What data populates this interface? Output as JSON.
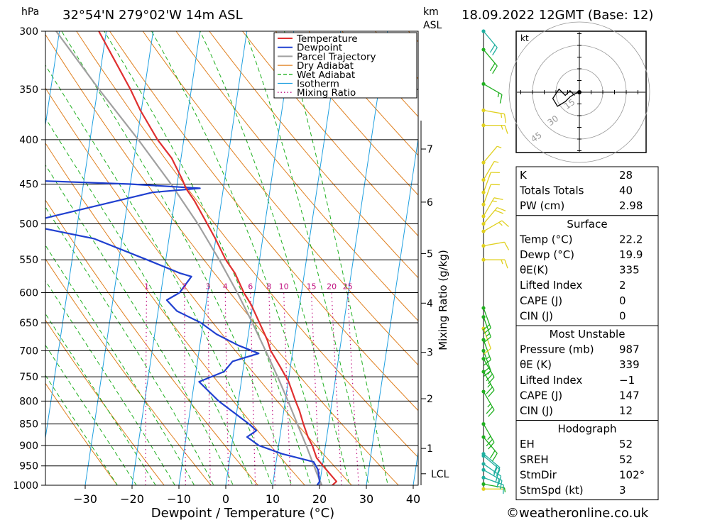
{
  "header": {
    "location": "32°54'N 279°02'W 14m ASL",
    "datetime": "18.09.2022 12GMT (Base: 12)",
    "hpa_label": "hPa",
    "km_label": "km",
    "asl_label": "ASL"
  },
  "legend": [
    "Temperature",
    "Dewpoint",
    "Parcel Trajectory",
    "Dry Adiabat",
    "Wet Adiabat",
    "Isotherm",
    "Mixing Ratio"
  ],
  "colors": {
    "temperature": "#e03030",
    "dewpoint": "#2040d0",
    "parcel": "#a0a0a0",
    "dry": "#e08020",
    "wet": "#20b020",
    "iso": "#20a0e0",
    "mix": "#c01080",
    "wind_green": "#20b020",
    "wind_yellow": "#e0d020",
    "wind_teal": "#20b0a0"
  },
  "chart_data": {
    "type": "line",
    "title": "Skew-T log-P diagram",
    "xlabel": "Dewpoint / Temperature (°C)",
    "ylabel": "hPa",
    "xlim": [
      -40,
      40
    ],
    "ylim": [
      1000,
      300
    ],
    "x_ticks": [
      "−30",
      "−20",
      "−10",
      "0",
      "10",
      "20",
      "30",
      "40"
    ],
    "pressure_levels": [
      300,
      350,
      400,
      450,
      500,
      550,
      600,
      650,
      700,
      750,
      800,
      850,
      900,
      950,
      1000
    ],
    "km_ticks": [
      {
        "km": "1",
        "p": 907
      },
      {
        "km": "2",
        "p": 795
      },
      {
        "km": "3",
        "p": 703
      },
      {
        "km": "4",
        "p": 617
      },
      {
        "km": "5",
        "p": 541
      },
      {
        "km": "6",
        "p": 472
      },
      {
        "km": "7",
        "p": 410
      }
    ],
    "lcl": {
      "label": "LCL",
      "p": 970
    },
    "mixing_ratio_axis": "Mixing Ratio (g/kg)",
    "mixing_ratio_lines": [
      {
        "label": "1",
        "w": 1
      },
      {
        "label": "2",
        "w": 2
      },
      {
        "label": "3",
        "w": 3
      },
      {
        "label": "4",
        "w": 4
      },
      {
        "label": "6",
        "w": 6
      },
      {
        "label": "8",
        "w": 8
      },
      {
        "label": "10",
        "w": 10
      },
      {
        "label": "15",
        "w": 15
      },
      {
        "label": "20",
        "w": 20
      },
      {
        "label": "25",
        "w": 25
      }
    ],
    "series": [
      {
        "name": "Temperature",
        "points": [
          [
            1007,
            22.2
          ],
          [
            990,
            23.5
          ],
          [
            960,
            21
          ],
          [
            930,
            18.5
          ],
          [
            900,
            17.2
          ],
          [
            880,
            16
          ],
          [
            850,
            14.6
          ],
          [
            820,
            13.3
          ],
          [
            800,
            12.2
          ],
          [
            760,
            10.1
          ],
          [
            730,
            7.8
          ],
          [
            700,
            5.3
          ],
          [
            680,
            4.2
          ],
          [
            650,
            2.0
          ],
          [
            620,
            -0.3
          ],
          [
            600,
            -2.3
          ],
          [
            570,
            -4.8
          ],
          [
            550,
            -7.2
          ],
          [
            520,
            -10.1
          ],
          [
            500,
            -12.3
          ],
          [
            470,
            -15.8
          ],
          [
            455,
            -18.0
          ],
          [
            445,
            -19.0
          ],
          [
            420,
            -22.0
          ],
          [
            400,
            -25.6
          ],
          [
            370,
            -30.2
          ],
          [
            350,
            -33.0
          ],
          [
            320,
            -38.0
          ],
          [
            300,
            -41.6
          ]
        ]
      },
      {
        "name": "Dewpoint",
        "points": [
          [
            1000,
            19.5
          ],
          [
            990,
            19.9
          ],
          [
            960,
            19.2
          ],
          [
            940,
            18.0
          ],
          [
            920,
            11.0
          ],
          [
            900,
            5.8
          ],
          [
            880,
            3.0
          ],
          [
            865,
            4.8
          ],
          [
            850,
            3.0
          ],
          [
            800,
            -4.2
          ],
          [
            760,
            -9.0
          ],
          [
            740,
            -4.0
          ],
          [
            720,
            -2.5
          ],
          [
            705,
            2.8
          ],
          [
            690,
            -1.8
          ],
          [
            670,
            -6.8
          ],
          [
            650,
            -10.5
          ],
          [
            630,
            -16.0
          ],
          [
            612,
            -18.5
          ],
          [
            600,
            -16.0
          ],
          [
            575,
            -14.0
          ],
          [
            570,
            -16.5
          ],
          [
            550,
            -24.0
          ],
          [
            520,
            -36.0
          ],
          [
            500,
            -52.0
          ],
          [
            460,
            -25.0
          ],
          [
            455,
            -15.0
          ],
          [
            450,
            -30.0
          ],
          [
            445,
            -55.0
          ],
          [
            400,
            -65.0
          ],
          [
            300,
            -85.0
          ]
        ]
      },
      {
        "name": "Parcel Trajectory",
        "points": [
          [
            1000,
            20.5
          ],
          [
            970,
            19.1
          ],
          [
            930,
            17.3
          ],
          [
            900,
            15.9
          ],
          [
            850,
            13.3
          ],
          [
            800,
            10.6
          ],
          [
            750,
            7.6
          ],
          [
            700,
            4.2
          ],
          [
            650,
            0.5
          ],
          [
            600,
            -3.7
          ],
          [
            550,
            -8.6
          ],
          [
            500,
            -14.3
          ],
          [
            450,
            -21.3
          ],
          [
            400,
            -29.7
          ],
          [
            350,
            -39.7
          ],
          [
            300,
            -50.7
          ]
        ]
      }
    ]
  },
  "winds": [
    {
      "p": 1010,
      "dir": 90,
      "spd": 3,
      "color": "yellow"
    },
    {
      "p": 997,
      "dir": 100,
      "spd": 5,
      "color": "green"
    },
    {
      "p": 980,
      "dir": 110,
      "spd": 10,
      "color": "teal"
    },
    {
      "p": 960,
      "dir": 120,
      "spd": 20,
      "color": "teal"
    },
    {
      "p": 945,
      "dir": 125,
      "spd": 20,
      "color": "teal"
    },
    {
      "p": 925,
      "dir": 130,
      "spd": 20,
      "color": "teal"
    },
    {
      "p": 920,
      "dir": 130,
      "spd": 20,
      "color": "teal"
    },
    {
      "p": 880,
      "dir": 140,
      "spd": 20,
      "color": "green"
    },
    {
      "p": 850,
      "dir": 150,
      "spd": 25,
      "color": "green"
    },
    {
      "p": 780,
      "dir": 150,
      "spd": 25,
      "color": "green"
    },
    {
      "p": 740,
      "dir": 150,
      "spd": 25,
      "color": "green"
    },
    {
      "p": 715,
      "dir": 150,
      "spd": 25,
      "color": "green"
    },
    {
      "p": 700,
      "dir": 160,
      "spd": 20,
      "color": "green"
    },
    {
      "p": 680,
      "dir": 160,
      "spd": 15,
      "color": "green"
    },
    {
      "p": 660,
      "dir": 160,
      "spd": 10,
      "color": "yellow"
    },
    {
      "p": 640,
      "dir": 160,
      "spd": 15,
      "color": "green"
    },
    {
      "p": 625,
      "dir": 160,
      "spd": 20,
      "color": "green"
    },
    {
      "p": 550,
      "dir": 90,
      "spd": 15,
      "color": "yellow"
    },
    {
      "p": 530,
      "dir": 80,
      "spd": 10,
      "color": "yellow"
    },
    {
      "p": 510,
      "dir": 60,
      "spd": 15,
      "color": "yellow"
    },
    {
      "p": 500,
      "dir": 40,
      "spd": 20,
      "color": "yellow"
    },
    {
      "p": 490,
      "dir": 30,
      "spd": 15,
      "color": "yellow"
    },
    {
      "p": 475,
      "dir": 20,
      "spd": 10,
      "color": "yellow"
    },
    {
      "p": 460,
      "dir": 20,
      "spd": 10,
      "color": "yellow"
    },
    {
      "p": 445,
      "dir": 30,
      "spd": 5,
      "color": "yellow"
    },
    {
      "p": 425,
      "dir": 40,
      "spd": 5,
      "color": "yellow"
    },
    {
      "p": 385,
      "dir": 90,
      "spd": 15,
      "color": "yellow"
    },
    {
      "p": 370,
      "dir": 100,
      "spd": 15,
      "color": "yellow"
    },
    {
      "p": 345,
      "dir": 120,
      "spd": 15,
      "color": "green"
    },
    {
      "p": 315,
      "dir": 140,
      "spd": 20,
      "color": "green"
    },
    {
      "p": 300,
      "dir": 140,
      "spd": 20,
      "color": "teal"
    }
  ],
  "hodograph": {
    "unit": "kt",
    "rings": [
      "15",
      "30",
      "45"
    ],
    "trace": [
      [
        0,
        0
      ],
      [
        -3,
        -1
      ],
      [
        -6,
        -3
      ],
      [
        -9,
        -6
      ],
      [
        -14,
        -9
      ],
      [
        -17,
        -4
      ],
      [
        -13,
        2
      ],
      [
        -9,
        -2
      ],
      [
        -6,
        1
      ],
      [
        -3,
        -2
      ]
    ]
  },
  "stats": {
    "top": [
      {
        "label": "K",
        "value": "28"
      },
      {
        "label": "Totals Totals",
        "value": "40"
      },
      {
        "label": "PW (cm)",
        "value": "2.98"
      }
    ],
    "surface_title": "Surface",
    "surface": [
      {
        "label": "Temp (°C)",
        "value": "22.2"
      },
      {
        "label": "Dewp (°C)",
        "value": "19.9"
      },
      {
        "label": "θE(K)",
        "value": "335"
      },
      {
        "label": "Lifted Index",
        "value": "2"
      },
      {
        "label": "CAPE (J)",
        "value": "0"
      },
      {
        "label": "CIN (J)",
        "value": "0"
      }
    ],
    "mu_title": "Most Unstable",
    "mu": [
      {
        "label": "Pressure (mb)",
        "value": "987"
      },
      {
        "label": "θE (K)",
        "value": "339"
      },
      {
        "label": "Lifted Index",
        "value": "−1"
      },
      {
        "label": "CAPE (J)",
        "value": "147"
      },
      {
        "label": "CIN (J)",
        "value": "12"
      }
    ],
    "hodo_title": "Hodograph",
    "hodo": [
      {
        "label": "EH",
        "value": "52"
      },
      {
        "label": "SREH",
        "value": "52"
      },
      {
        "label": "StmDir",
        "value": "102°"
      },
      {
        "label": "StmSpd (kt)",
        "value": "3"
      }
    ]
  },
  "credit": "©weatheronline.co.uk"
}
